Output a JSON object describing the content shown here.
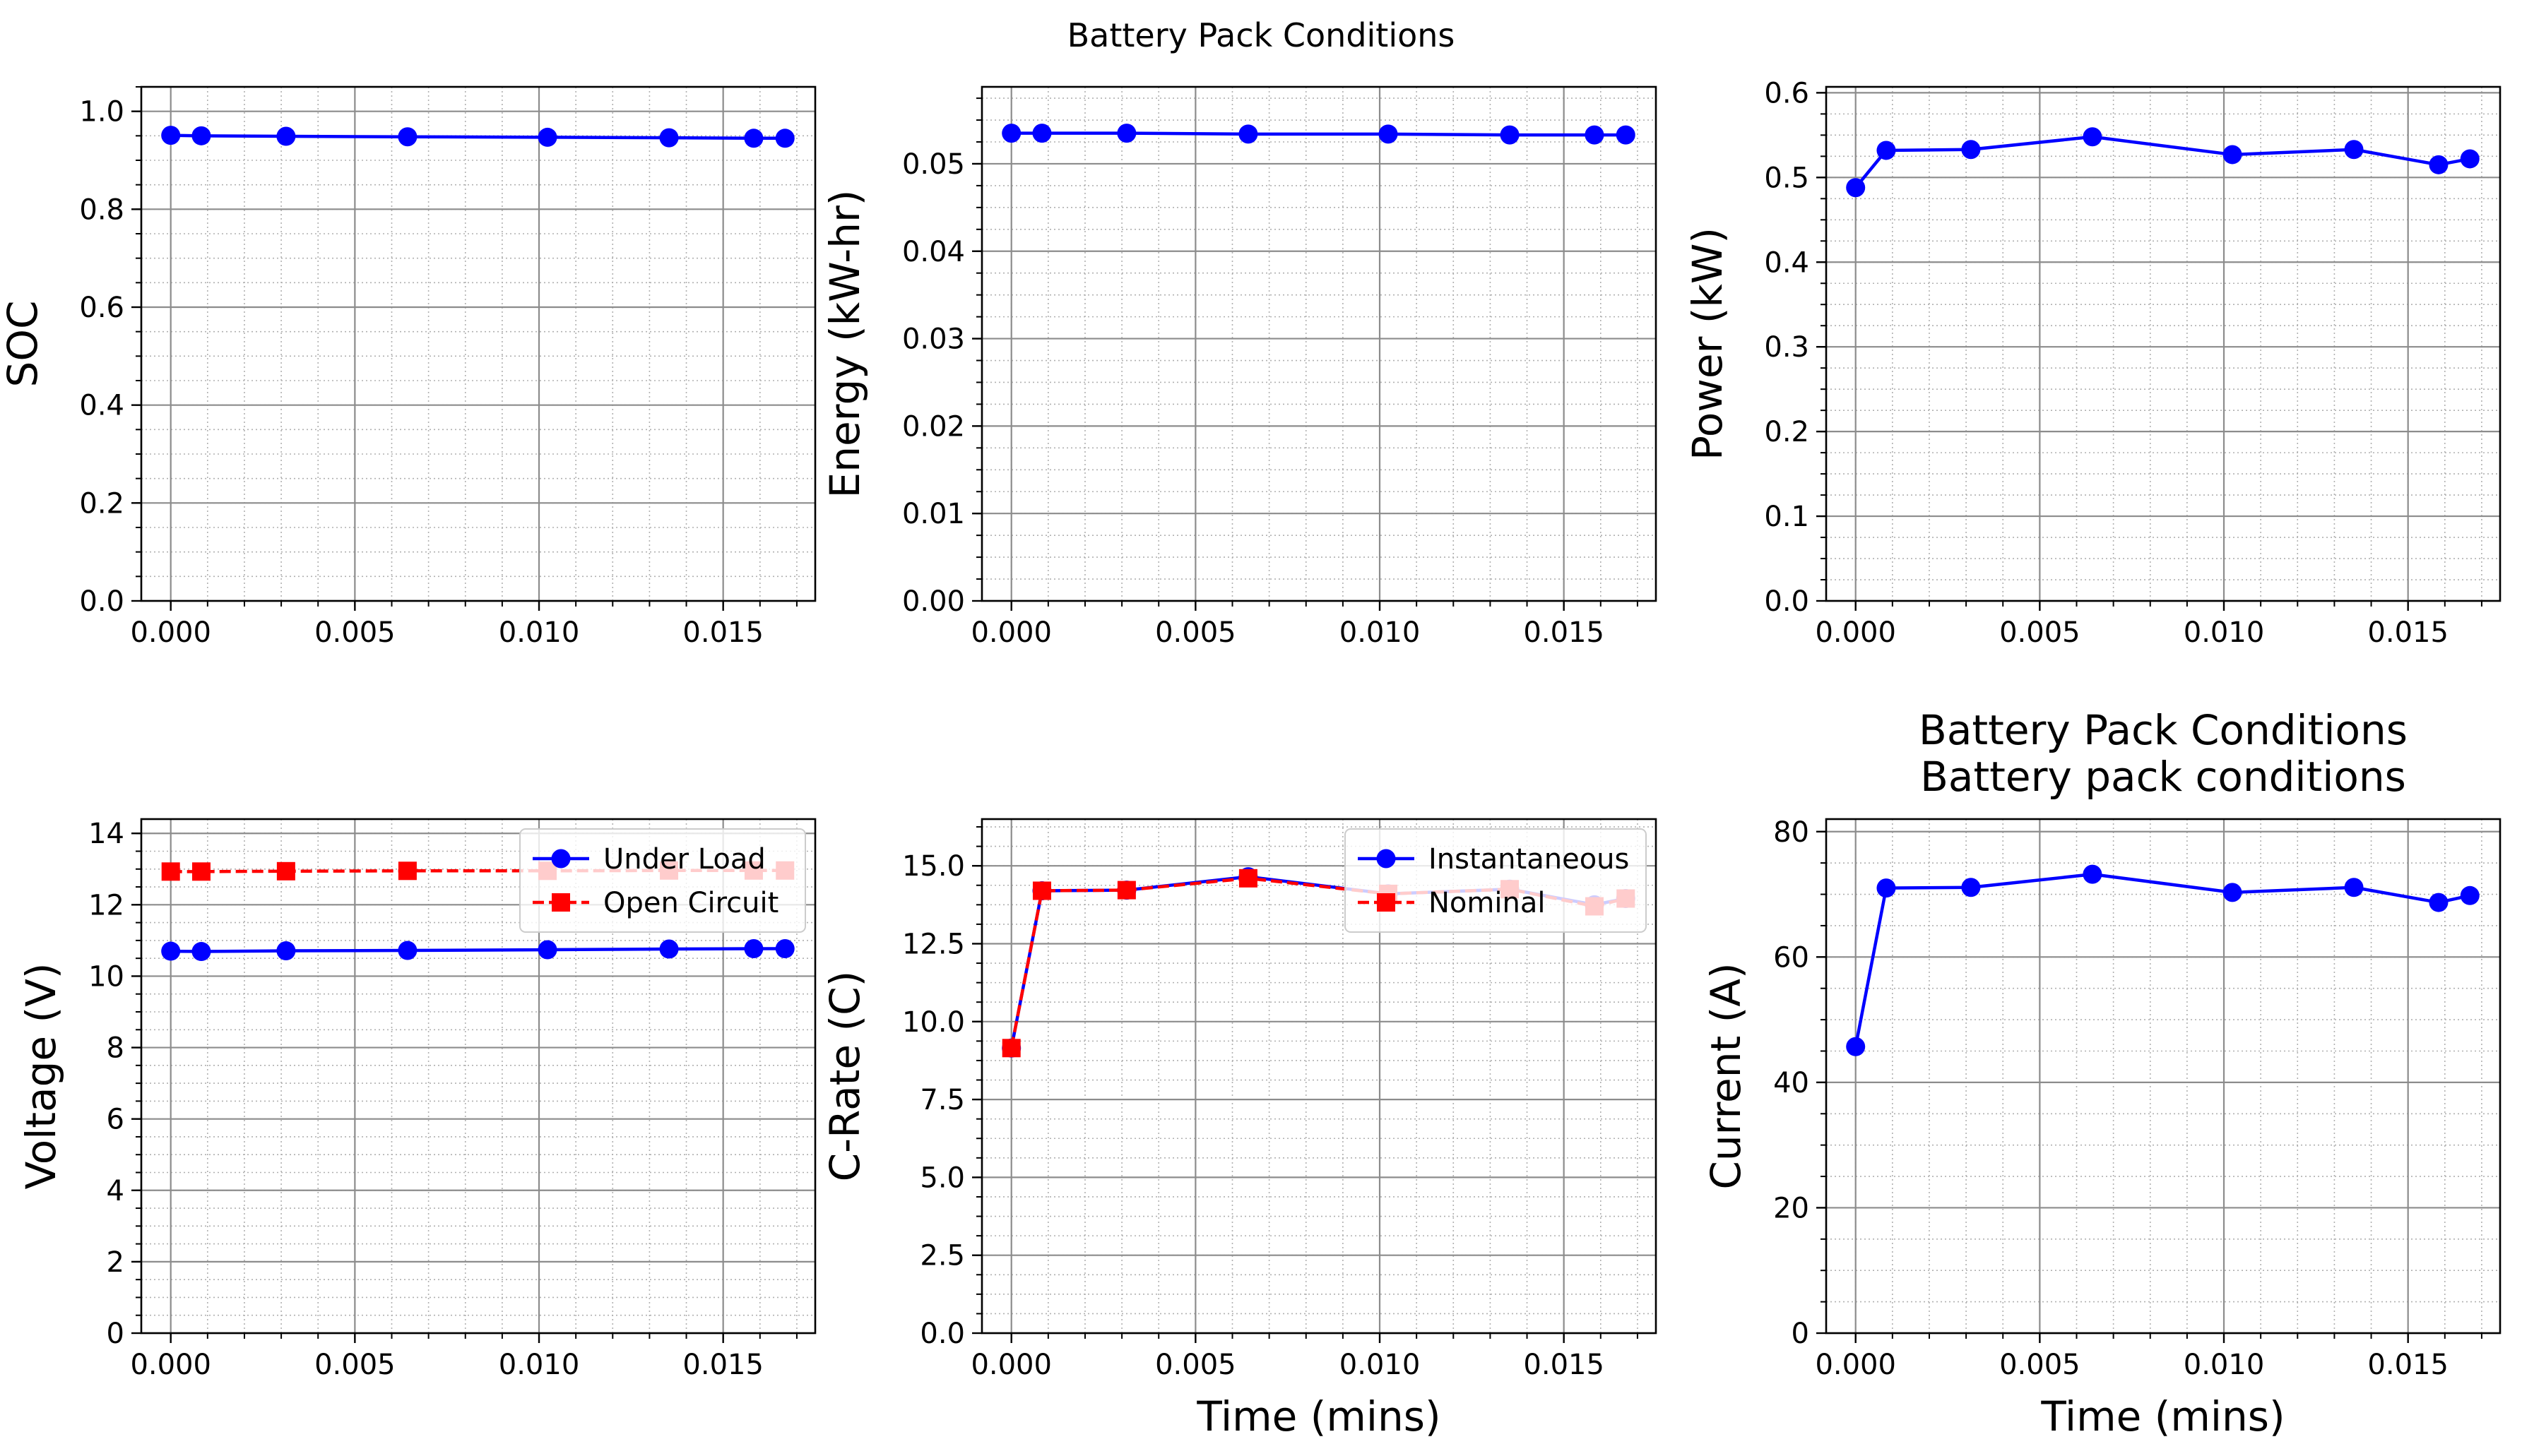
{
  "figure": {
    "suptitle": "Battery Pack Conditions",
    "colors": {
      "blue": "#0000ff",
      "red": "#ff0000"
    }
  },
  "chart_data": [
    {
      "id": "soc",
      "type": "line",
      "title": "",
      "xlabel": "",
      "ylabel": "SOC",
      "xlim": [
        -0.0008,
        0.0175
      ],
      "ylim": [
        0,
        1.05
      ],
      "xticks": [
        0.0,
        0.005,
        0.01,
        0.015
      ],
      "xtick_labels": [
        "0.000",
        "0.005",
        "0.010",
        "0.015"
      ],
      "yticks": [
        0,
        0.2,
        0.4,
        0.6,
        0.8,
        1.0
      ],
      "ytick_labels": [
        "0.0",
        "0.2",
        "0.4",
        "0.6",
        "0.8",
        "1.0"
      ],
      "yminor": 0.05,
      "grid": true,
      "legend": null,
      "x": [
        0.0,
        0.00083,
        0.00313,
        0.00643,
        0.01023,
        0.01353,
        0.01583,
        0.01668
      ],
      "series": [
        {
          "name": "",
          "style": "solid-circle",
          "color": "#0000ff",
          "values": [
            0.951,
            0.95,
            0.949,
            0.948,
            0.947,
            0.946,
            0.945,
            0.945
          ]
        }
      ]
    },
    {
      "id": "energy",
      "type": "line",
      "title": "",
      "xlabel": "",
      "ylabel": "Energy (kW-hr)",
      "xlim": [
        -0.0008,
        0.0175
      ],
      "ylim": [
        0,
        0.0588
      ],
      "xticks": [
        0.0,
        0.005,
        0.01,
        0.015
      ],
      "xtick_labels": [
        "0.000",
        "0.005",
        "0.010",
        "0.015"
      ],
      "yticks": [
        0,
        0.01,
        0.02,
        0.03,
        0.04,
        0.05
      ],
      "ytick_labels": [
        "0.00",
        "0.01",
        "0.02",
        "0.03",
        "0.04",
        "0.05"
      ],
      "yminor": 0.0025,
      "grid": true,
      "legend": null,
      "x": [
        0.0,
        0.00083,
        0.00313,
        0.00643,
        0.01023,
        0.01353,
        0.01583,
        0.01668
      ],
      "series": [
        {
          "name": "",
          "style": "solid-circle",
          "color": "#0000ff",
          "values": [
            0.0535,
            0.0535,
            0.0535,
            0.0534,
            0.0534,
            0.0533,
            0.0533,
            0.0533
          ]
        }
      ]
    },
    {
      "id": "power",
      "type": "line",
      "title": "",
      "xlabel": "",
      "ylabel": "Power (kW)",
      "xlim": [
        -0.0008,
        0.0175
      ],
      "ylim": [
        0,
        0.607
      ],
      "xticks": [
        0.0,
        0.005,
        0.01,
        0.015
      ],
      "xtick_labels": [
        "0.000",
        "0.005",
        "0.010",
        "0.015"
      ],
      "yticks": [
        0,
        0.1,
        0.2,
        0.3,
        0.4,
        0.5,
        0.6
      ],
      "ytick_labels": [
        "0.0",
        "0.1",
        "0.2",
        "0.3",
        "0.4",
        "0.5",
        "0.6"
      ],
      "yminor": 0.025,
      "grid": true,
      "legend": null,
      "x": [
        0.0,
        0.00083,
        0.00313,
        0.00643,
        0.01023,
        0.01353,
        0.01583,
        0.01668
      ],
      "series": [
        {
          "name": "",
          "style": "solid-circle",
          "color": "#0000ff",
          "values": [
            0.488,
            0.532,
            0.533,
            0.548,
            0.527,
            0.533,
            0.515,
            0.522
          ]
        }
      ]
    },
    {
      "id": "voltage",
      "type": "line",
      "title": "",
      "xlabel": "",
      "ylabel": "Voltage (V)",
      "xlim": [
        -0.0008,
        0.0175
      ],
      "ylim": [
        0,
        14.4
      ],
      "xticks": [
        0.0,
        0.005,
        0.01,
        0.015
      ],
      "xtick_labels": [
        "0.000",
        "0.005",
        "0.010",
        "0.015"
      ],
      "yticks": [
        0,
        2,
        4,
        6,
        8,
        10,
        12,
        14
      ],
      "ytick_labels": [
        "0",
        "2",
        "4",
        "6",
        "8",
        "10",
        "12",
        "14"
      ],
      "yminor": 0.5,
      "grid": true,
      "legend": "upper right",
      "x": [
        0.0,
        0.00083,
        0.00313,
        0.00643,
        0.01023,
        0.01353,
        0.01583,
        0.01668
      ],
      "series": [
        {
          "name": "Under Load",
          "style": "solid-circle",
          "color": "#0000ff",
          "values": [
            10.7,
            10.69,
            10.71,
            10.72,
            10.74,
            10.76,
            10.77,
            10.77
          ]
        },
        {
          "name": "Open Circuit",
          "style": "dashed-square",
          "color": "#ff0000",
          "values": [
            12.93,
            12.93,
            12.94,
            12.95,
            12.95,
            12.96,
            12.96,
            12.96
          ]
        }
      ]
    },
    {
      "id": "crate",
      "type": "line",
      "title": "",
      "xlabel": "Time (mins)",
      "ylabel": "C-Rate (C)",
      "xlim": [
        -0.0008,
        0.0175
      ],
      "ylim": [
        0,
        16.5
      ],
      "xticks": [
        0.0,
        0.005,
        0.01,
        0.015
      ],
      "xtick_labels": [
        "0.000",
        "0.005",
        "0.010",
        "0.015"
      ],
      "yticks": [
        0,
        2.5,
        5,
        7.5,
        10,
        12.5,
        15
      ],
      "ytick_labels": [
        "0.0",
        "2.5",
        "5.0",
        "7.5",
        "10.0",
        "12.5",
        "15.0"
      ],
      "yminor": 0.625,
      "grid": true,
      "legend": "upper right",
      "x": [
        0.0,
        0.00083,
        0.00313,
        0.00643,
        0.01023,
        0.01353,
        0.01583,
        0.01668
      ],
      "series": [
        {
          "name": "Instantaneous",
          "style": "solid-circle",
          "color": "#0000ff",
          "values": [
            9.15,
            14.2,
            14.22,
            14.65,
            14.1,
            14.25,
            13.75,
            13.95
          ]
        },
        {
          "name": "Nominal",
          "style": "dashed-square",
          "color": "#ff0000",
          "values": [
            9.15,
            14.2,
            14.22,
            14.6,
            14.1,
            14.25,
            13.7,
            13.95
          ]
        }
      ]
    },
    {
      "id": "current",
      "type": "line",
      "title": [
        "Battery Pack Conditions",
        "Battery pack conditions"
      ],
      "xlabel": "Time (mins)",
      "ylabel": "Current (A)",
      "xlim": [
        -0.0008,
        0.0175
      ],
      "ylim": [
        0,
        82
      ],
      "xticks": [
        0.0,
        0.005,
        0.01,
        0.015
      ],
      "xtick_labels": [
        "0.000",
        "0.005",
        "0.010",
        "0.015"
      ],
      "yticks": [
        0,
        20,
        40,
        60,
        80
      ],
      "ytick_labels": [
        "0",
        "20",
        "40",
        "60",
        "80"
      ],
      "yminor": 5,
      "grid": true,
      "legend": null,
      "x": [
        0.0,
        0.00083,
        0.00313,
        0.00643,
        0.01023,
        0.01353,
        0.01583,
        0.01668
      ],
      "series": [
        {
          "name": "",
          "style": "solid-circle",
          "color": "#0000ff",
          "values": [
            45.7,
            71.0,
            71.1,
            73.2,
            70.3,
            71.1,
            68.7,
            69.8
          ]
        }
      ]
    }
  ]
}
